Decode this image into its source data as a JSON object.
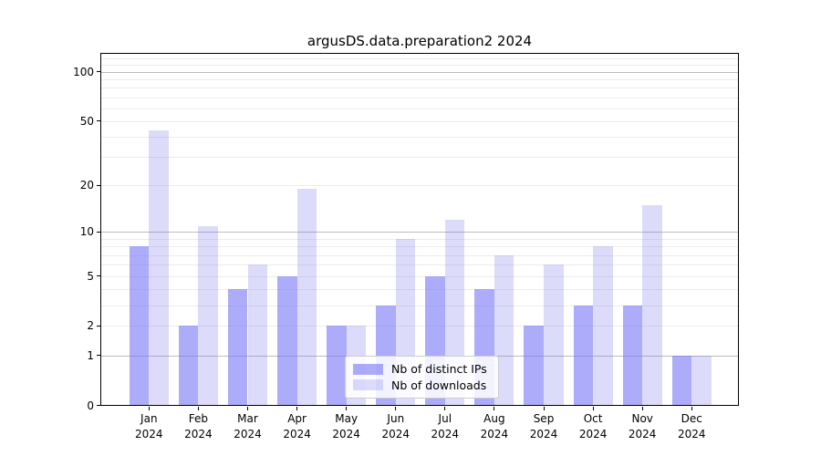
{
  "chart_data": {
    "type": "bar",
    "title": "argusDS.data.preparation2 2024",
    "year_label": "2024",
    "months": [
      "Jan",
      "Feb",
      "Mar",
      "Apr",
      "May",
      "Jun",
      "Jul",
      "Aug",
      "Sep",
      "Oct",
      "Nov",
      "Dec"
    ],
    "series": [
      {
        "name": "Nb of distinct IPs",
        "color": "rgba(116,116,247,0.6)",
        "values": [
          8,
          2,
          4,
          5,
          2,
          3,
          5,
          4,
          2,
          3,
          3,
          1
        ]
      },
      {
        "name": "Nb of downloads",
        "color": "rgba(115,115,235,0.25)",
        "values": [
          44,
          11,
          6,
          19,
          2,
          9,
          12,
          7,
          6,
          8,
          15,
          1
        ]
      }
    ],
    "y_axis": {
      "scale": "log10(1+value)",
      "tick_values": [
        0,
        1,
        2,
        5,
        10,
        20,
        50,
        100
      ],
      "major_grid_values": [
        1,
        10,
        100
      ],
      "minor_grid_values": [
        2,
        3,
        4,
        5,
        6,
        7,
        8,
        9,
        20,
        30,
        40,
        50,
        60,
        70,
        80,
        90,
        110,
        120
      ],
      "ylim": [
        0,
        130
      ]
    },
    "xlabel": "",
    "ylabel": "",
    "grid": "both",
    "legend_position": "bottom-center",
    "colors": {
      "major_grid": "#bdbdbd",
      "minor_grid": "#ececec",
      "axis": "#000000",
      "background": "#ffffff"
    }
  }
}
